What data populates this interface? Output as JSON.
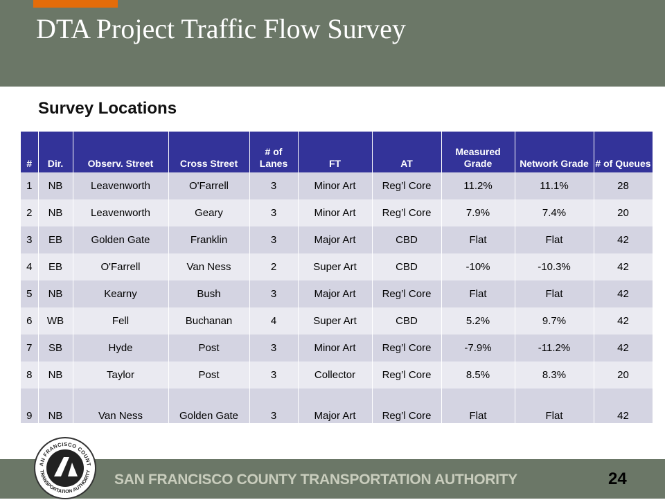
{
  "header": {
    "title": "DTA Project Traffic Flow Survey"
  },
  "section_title": "Survey Locations",
  "table": {
    "header": [
      "#",
      "Dir.",
      "Observ. Street",
      "Cross Street",
      "# of Lanes",
      "FT",
      "AT",
      "Measured Grade",
      "Network Grade",
      "# of Queues"
    ],
    "rows": [
      [
        "1",
        "NB",
        "Leavenworth",
        "O'Farrell",
        "3",
        "Minor Art",
        "Reg’l Core",
        "11.2%",
        "11.1%",
        "28"
      ],
      [
        "2",
        "NB",
        "Leavenworth",
        "Geary",
        "3",
        "Minor Art",
        "Reg’l Core",
        "7.9%",
        "7.4%",
        "20"
      ],
      [
        "3",
        "EB",
        "Golden Gate",
        "Franklin",
        "3",
        "Major Art",
        "CBD",
        "Flat",
        "Flat",
        "42"
      ],
      [
        "4",
        "EB",
        "O'Farrell",
        "Van Ness",
        "2",
        "Super Art",
        "CBD",
        "-10%",
        "-10.3%",
        "42"
      ],
      [
        "5",
        "NB",
        "Kearny",
        "Bush",
        "3",
        "Major Art",
        "Reg’l Core",
        "Flat",
        "Flat",
        "42"
      ],
      [
        "6",
        "WB",
        "Fell",
        "Buchanan",
        "4",
        "Super Art",
        "CBD",
        "5.2%",
        "9.7%",
        "42"
      ],
      [
        "7",
        "SB",
        "Hyde",
        "Post",
        "3",
        "Minor Art",
        "Reg’l Core",
        "-7.9%",
        "-11.2%",
        "42"
      ],
      [
        "8",
        "NB",
        "Taylor",
        "Post",
        "3",
        "Collector",
        "Reg’l Core",
        "8.5%",
        "8.3%",
        "20"
      ],
      [
        "9",
        "NB",
        "Van Ness",
        "Golden Gate",
        "3",
        "Major Art",
        "Reg’l Core",
        "Flat",
        "Flat",
        "42"
      ]
    ]
  },
  "footer": {
    "organization": "SAN FRANCISCO COUNTY TRANSPORTATION AUTHORITY",
    "page_number": "24",
    "logo_top": "SAN FRANCISCO COUNTY",
    "logo_bottom": "TRANSPORTATION AUTHORITY"
  }
}
